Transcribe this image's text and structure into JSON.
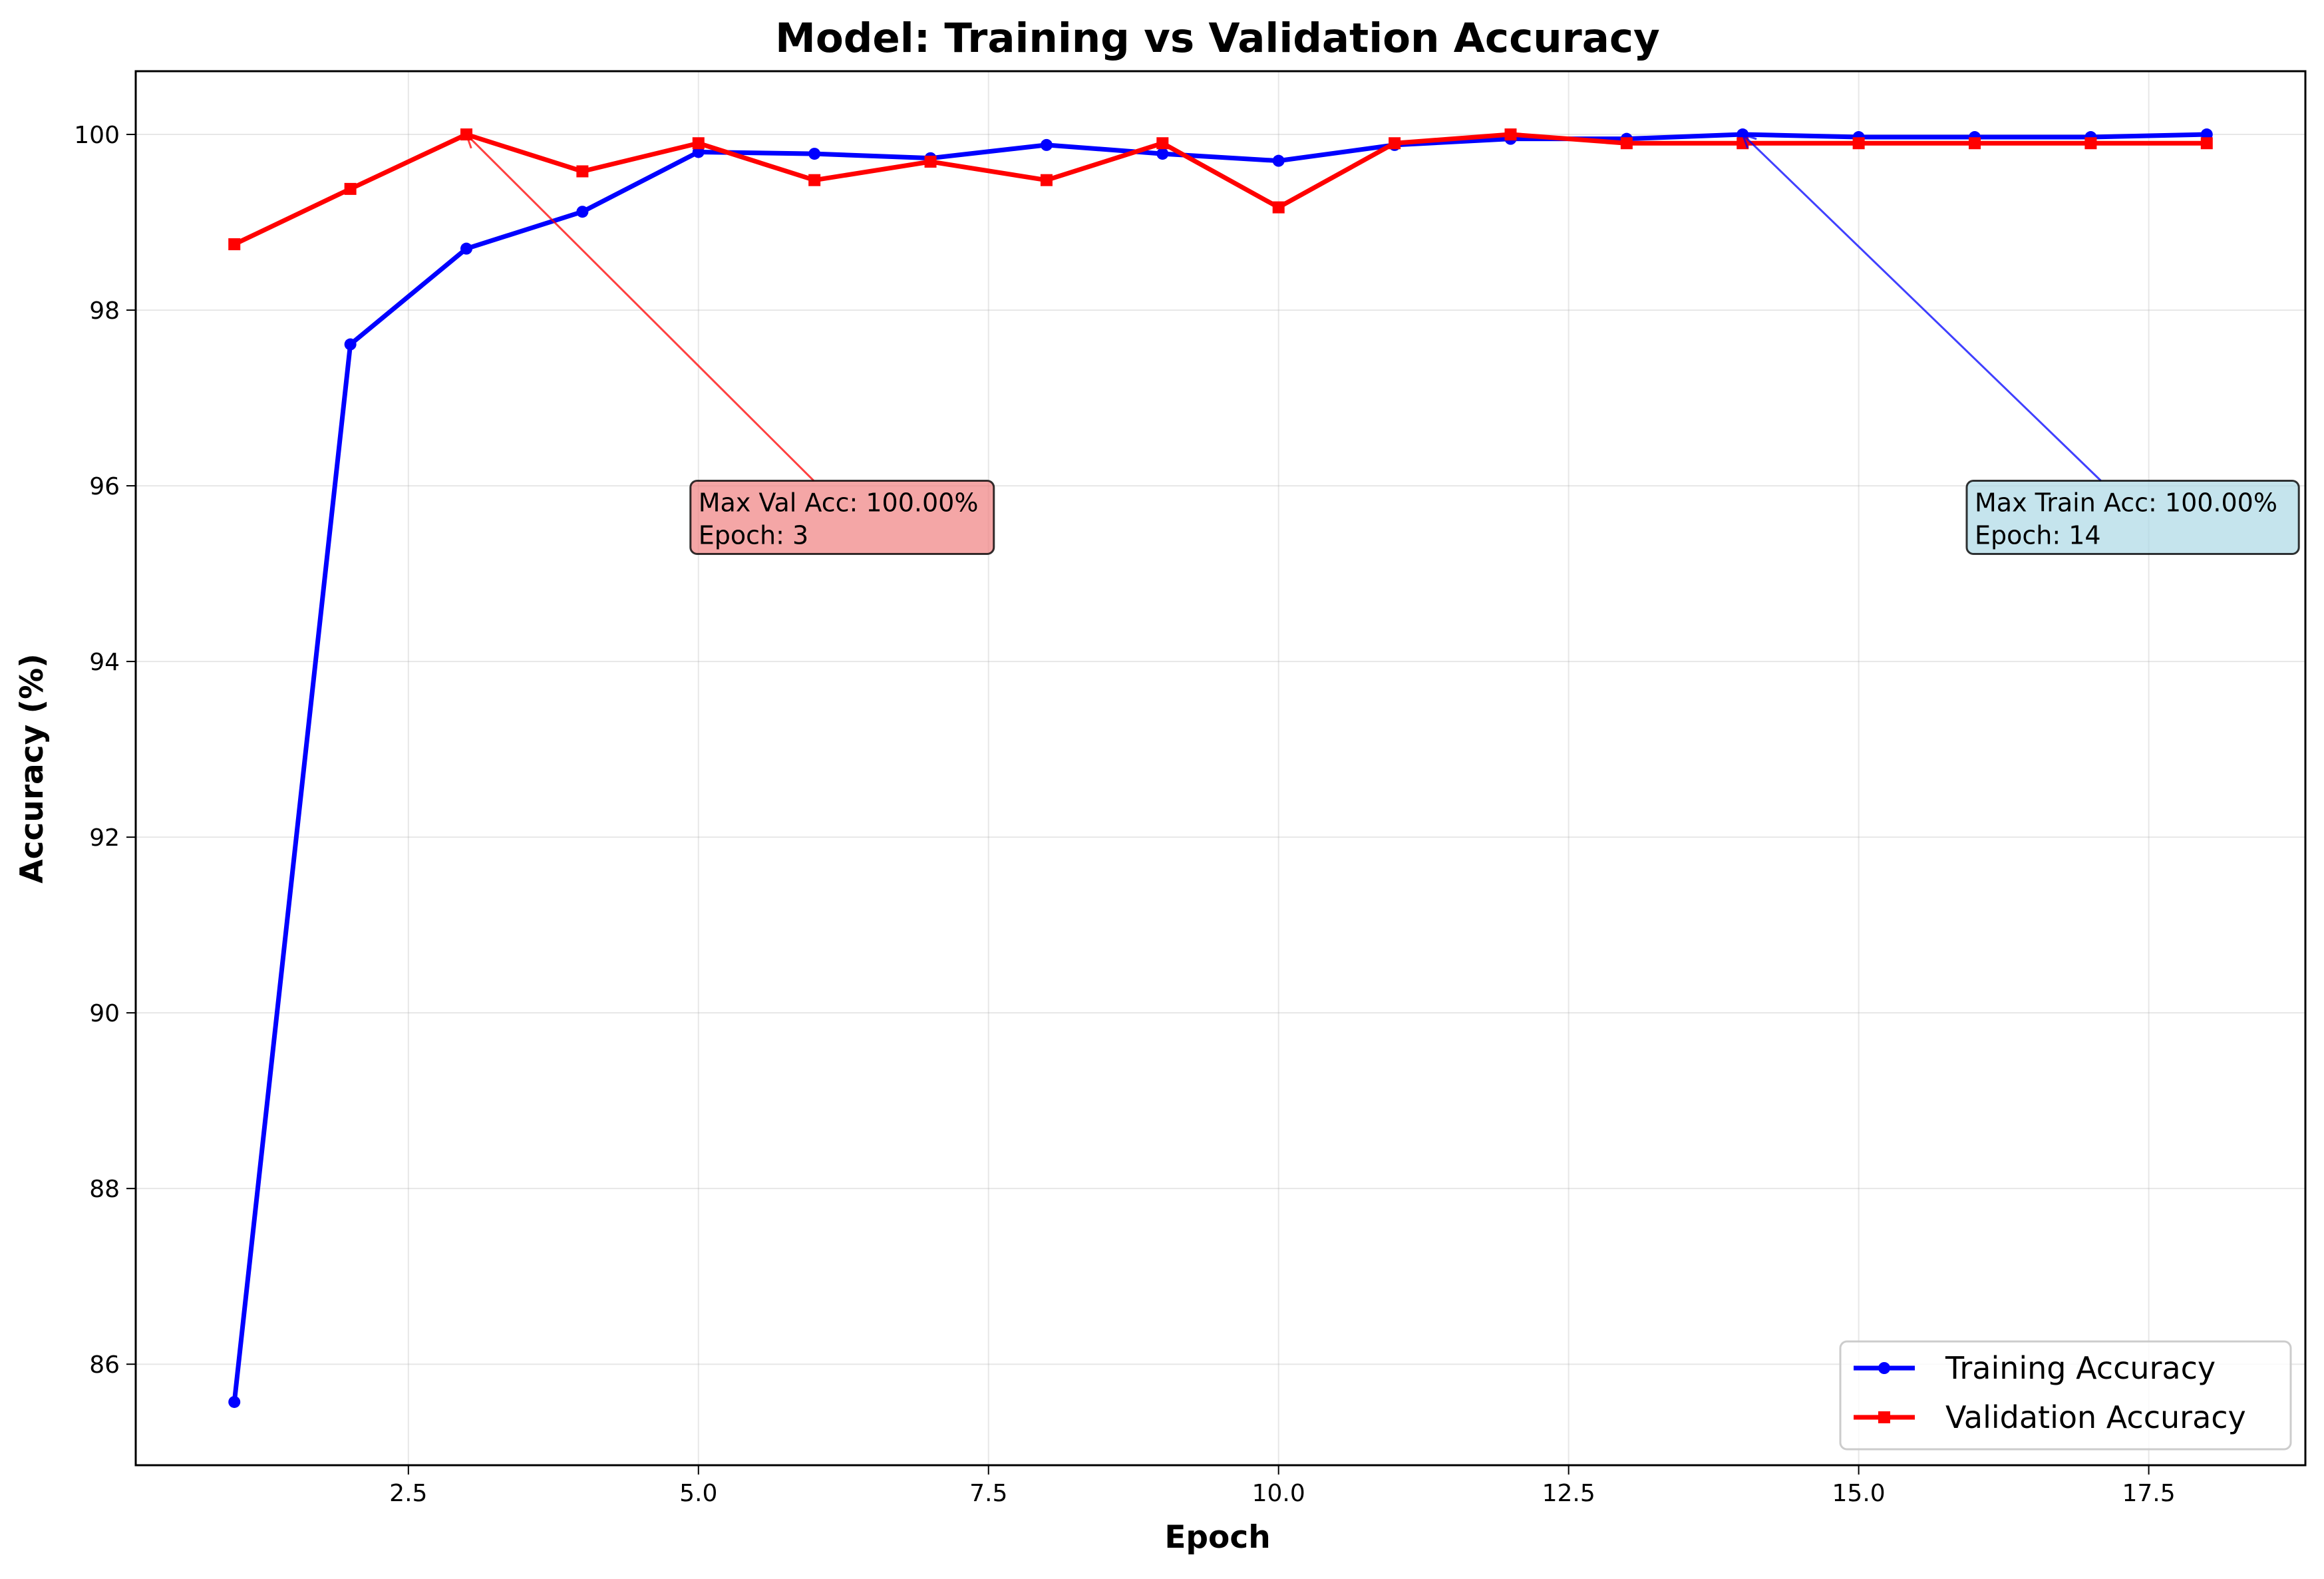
{
  "chart_data": {
    "type": "line",
    "title": "Model: Training vs Validation Accuracy",
    "xlabel": "Epoch",
    "ylabel": "Accuracy (%)",
    "xlim": [
      0.15,
      18.85
    ],
    "ylim": [
      84.85,
      100.72
    ],
    "xticks": [
      2.5,
      5.0,
      7.5,
      10.0,
      12.5,
      15.0,
      17.5
    ],
    "xtick_labels": [
      "2.5",
      "5.0",
      "7.5",
      "10.0",
      "12.5",
      "15.0",
      "17.5"
    ],
    "yticks": [
      86,
      88,
      90,
      92,
      94,
      96,
      98,
      100
    ],
    "ytick_labels": [
      "86",
      "88",
      "90",
      "92",
      "94",
      "96",
      "98",
      "100"
    ],
    "grid": true,
    "legend_position": "bottom-right",
    "x": [
      1,
      2,
      3,
      4,
      5,
      6,
      7,
      8,
      9,
      10,
      11,
      12,
      13,
      14,
      15,
      16,
      17,
      18
    ],
    "series": [
      {
        "name": "Training Accuracy",
        "color": "#0000ff",
        "marker": "circle",
        "values": [
          85.57,
          97.61,
          98.7,
          99.12,
          99.8,
          99.78,
          99.73,
          99.88,
          99.78,
          99.7,
          99.88,
          99.95,
          99.95,
          100.0,
          99.97,
          99.97,
          99.97,
          100.0
        ]
      },
      {
        "name": "Validation Accuracy",
        "color": "#ff0000",
        "marker": "square",
        "values": [
          98.75,
          99.38,
          100.0,
          99.58,
          99.9,
          99.48,
          99.69,
          99.48,
          99.9,
          99.17,
          99.9,
          100.0,
          99.9,
          99.9,
          99.9,
          99.9,
          99.9,
          99.9
        ]
      }
    ],
    "annotations": [
      {
        "lines": [
          "Max Val Acc: 100.00%",
          "Epoch: 3"
        ],
        "point": [
          3,
          100.0
        ],
        "text_at": [
          5.0,
          95.3
        ],
        "box_color": "#f08080",
        "arrow_color": "#ff0000"
      },
      {
        "lines": [
          "Max Train Acc: 100.00%",
          "Epoch: 14"
        ],
        "point": [
          14,
          100.0
        ],
        "text_at": [
          16.0,
          95.3
        ],
        "box_color": "#add8e6",
        "arrow_color": "#0000ff"
      }
    ]
  }
}
